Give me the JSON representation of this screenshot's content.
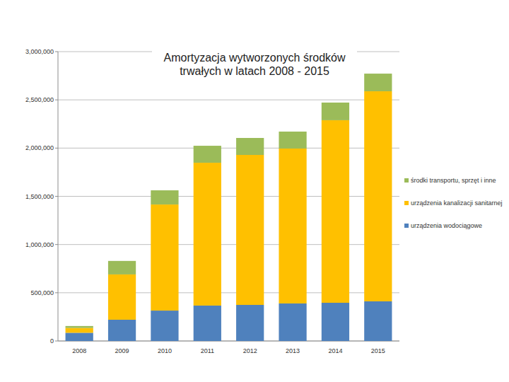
{
  "chart_data": {
    "type": "bar",
    "stacked": true,
    "grid": true,
    "legend": "right",
    "title": "Amortyzacja  wytworzonych środków trwałych w latach 2008 - 2015",
    "categories": [
      "2008",
      "2009",
      "2010",
      "2011",
      "2012",
      "2013",
      "2014",
      "2015"
    ],
    "series": [
      {
        "name": "urządzenia wodociągowe",
        "color": "#4f81bd",
        "values": [
          85000,
          220000,
          315000,
          367000,
          374000,
          389000,
          396000,
          411000
        ]
      },
      {
        "name": "urządzenia kanalizacji sanitarnej",
        "color": "#ffc000",
        "values": [
          50000,
          470000,
          1100000,
          1481000,
          1555000,
          1606000,
          1893000,
          2178000
        ]
      },
      {
        "name": "środki transportu, sprzęt i inne",
        "color": "#9bbb59",
        "values": [
          20000,
          140000,
          147000,
          176000,
          176000,
          176000,
          183000,
          183000
        ]
      }
    ],
    "ylim": [
      0,
      3000000
    ],
    "yticks": [
      0,
      {
        "value": 500000,
        "label": "500,000"
      },
      {
        "value": 1000000,
        "label": "1,000,000"
      },
      {
        "value": 1500000,
        "label": "1,500,000"
      },
      {
        "value": 2000000,
        "label": "2,000,000"
      },
      {
        "value": 2500000,
        "label": "2,500,000"
      },
      {
        "value": 3000000,
        "label": "3,000,000"
      }
    ]
  }
}
